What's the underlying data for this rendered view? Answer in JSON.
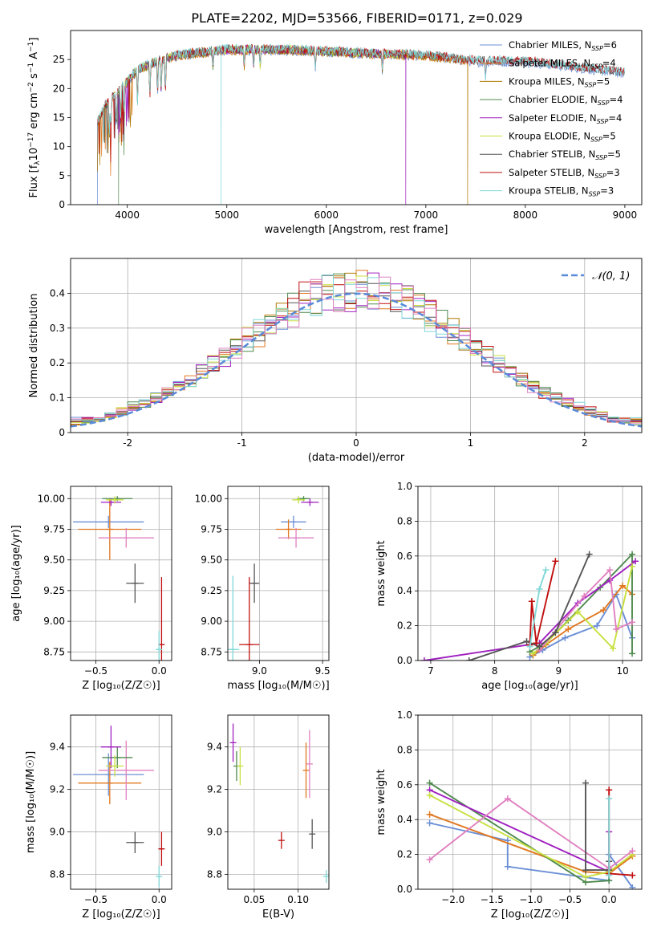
{
  "figure_title": "PLATE=2202, MJD=53566, FIBERID=0171, z=0.029",
  "chart_data": [
    {
      "id": "spectrum",
      "type": "line",
      "xlabel": "wavelength [Angstrom, rest frame]",
      "ylabel_parts": [
        "Flux [f",
        "λ",
        "10",
        "−17",
        " erg cm",
        "−2",
        " s",
        "−1",
        " A",
        "−1",
        "]"
      ],
      "xlim": [
        3430,
        9170
      ],
      "ylim": [
        0,
        30
      ],
      "xticks": [
        4000,
        5000,
        6000,
        7000,
        8000,
        9000
      ],
      "yticks": [
        0,
        5,
        10,
        15,
        20,
        25
      ],
      "legend_position": "upper-right",
      "continuum": {
        "x": [
          3700,
          3780,
          3900,
          4000,
          4100,
          4300,
          4500,
          5000,
          5500,
          6000,
          6500,
          7000,
          7500,
          8000,
          8500,
          9000
        ],
        "y": [
          14,
          17,
          19,
          21,
          23,
          24.5,
          25.5,
          26.5,
          26.5,
          26.2,
          25.8,
          25.5,
          24.5,
          24.5,
          23.5,
          22.5
        ]
      },
      "drops": [
        {
          "series": 0,
          "x": 3700,
          "to": 0
        },
        {
          "series": 3,
          "x": 3910,
          "to": 0
        },
        {
          "series": 8,
          "x": 4940,
          "to": 0
        },
        {
          "series": 4,
          "x": 6800,
          "to": 0
        },
        {
          "series": 2,
          "x": 7420,
          "to": 0
        }
      ],
      "series": [
        {
          "name": "Chabrier MILES",
          "nssp": "6",
          "color": "#6b8fd6",
          "range": [
            3700,
            9000
          ]
        },
        {
          "name": "Salpeter MILES",
          "nssp": "4",
          "color": "#e07820",
          "range": [
            3700,
            7420
          ]
        },
        {
          "name": "Kroupa MILES",
          "nssp": "5",
          "color": "#b07800",
          "range": [
            3700,
            7420
          ]
        },
        {
          "name": "Chabrier ELODIE",
          "nssp": "4",
          "color": "#4f8a4f",
          "range": [
            3900,
            6800
          ]
        },
        {
          "name": "Salpeter ELODIE",
          "nssp": "4",
          "color": "#a020c0",
          "range": [
            3900,
            6800
          ]
        },
        {
          "name": "Kroupa ELODIE",
          "nssp": "5",
          "color": "#c8e040",
          "range": [
            3900,
            6800
          ]
        },
        {
          "name": "Chabrier STELIB",
          "nssp": "5",
          "color": "#555555",
          "range": [
            3700,
            9000
          ]
        },
        {
          "name": "Salpeter STELIB",
          "nssp": "3",
          "color": "#c01010",
          "range": [
            3700,
            9000
          ]
        },
        {
          "name": "Kroupa STELIB",
          "nssp": "3",
          "color": "#80d8d8",
          "range": [
            3700,
            9000
          ]
        }
      ]
    },
    {
      "id": "residuals",
      "type": "histogram",
      "xlabel": "(data-model)/error",
      "ylabel": "Normed distribution",
      "xlim": [
        -2.5,
        2.5
      ],
      "ylim": [
        0,
        0.5
      ],
      "xticks": [
        -2,
        -1,
        0,
        1,
        2
      ],
      "yticks": [
        0.0,
        0.1,
        0.2,
        0.3,
        0.4
      ],
      "bin_width": 0.1,
      "colors": [
        "#6b8fd6",
        "#e07820",
        "#b07800",
        "#4f8a4f",
        "#a020c0",
        "#c8e040",
        "#555555",
        "#c01010",
        "#80d8d8",
        "#e080c0"
      ],
      "reference_curve": {
        "label": "𝒩(0, 1)",
        "color": "#5a8ad8",
        "style": "dashed",
        "mean": 0,
        "sigma": 1
      }
    },
    {
      "id": "age-vs-Z",
      "type": "errorbar",
      "xlabel": "Z [log₁₀(Z/Z☉)]",
      "ylabel": "age  [log₁₀(age/yr)]",
      "xlim": [
        -0.7,
        0.1
      ],
      "ylim": [
        8.68,
        10.1
      ],
      "xticks": [
        -0.5,
        0.0
      ],
      "xticklabels": [
        "−0.5",
        "0.0"
      ],
      "yticks": [
        8.75,
        9.0,
        9.25,
        9.5,
        9.75,
        10.0
      ],
      "yticklabels": [
        "8.75",
        "9.00",
        "9.25",
        "9.50",
        "9.75",
        "10.00"
      ],
      "points": [
        {
          "x": -0.4,
          "xerr": 0.28,
          "y": 9.81,
          "yerr": 0.05,
          "color": "#6b8fd6"
        },
        {
          "x": -0.39,
          "xerr": 0.25,
          "y": 9.75,
          "yerr": 0.25,
          "color": "#e07820"
        },
        {
          "x": -0.26,
          "xerr": 0.22,
          "y": 9.68,
          "yerr": 0.08,
          "color": "#e080c0"
        },
        {
          "x": -0.33,
          "xerr": 0.12,
          "y": 10.0,
          "yerr": 0.02,
          "color": "#4f8a4f"
        },
        {
          "x": -0.38,
          "xerr": 0.08,
          "y": 9.97,
          "yerr": 0.03,
          "color": "#a020c0"
        },
        {
          "x": -0.35,
          "xerr": 0.07,
          "y": 9.99,
          "yerr": 0.03,
          "color": "#c8e040"
        },
        {
          "x": -0.19,
          "xerr": 0.07,
          "y": 9.31,
          "yerr": 0.16,
          "color": "#555555"
        },
        {
          "x": 0.02,
          "xerr": 0.02,
          "y": 8.81,
          "yerr": 0.55,
          "color": "#c01010"
        },
        {
          "x": 0.0,
          "xerr": 0.02,
          "y": 8.77,
          "yerr": 0.15,
          "color": "#80d8d8"
        }
      ]
    },
    {
      "id": "age-vs-mass",
      "type": "errorbar",
      "xlabel": "mass [log₁₀(M/M☉)]",
      "ylabel": "",
      "xlim": [
        8.75,
        9.55
      ],
      "ylim": [
        8.68,
        10.1
      ],
      "xticks": [
        9.0,
        9.5
      ],
      "xticklabels": [
        "9.0",
        "9.5"
      ],
      "yticks": [
        8.75,
        9.0,
        9.25,
        9.5,
        9.75,
        10.0
      ],
      "yticklabels": [
        "8.75",
        "9.00",
        "9.25",
        "9.50",
        "9.75",
        "10.00"
      ],
      "points": [
        {
          "x": 9.27,
          "xerr": 0.1,
          "y": 9.81,
          "yerr": 0.05,
          "color": "#6b8fd6"
        },
        {
          "x": 9.23,
          "xerr": 0.1,
          "y": 9.75,
          "yerr": 0.08,
          "color": "#e07820"
        },
        {
          "x": 9.29,
          "xerr": 0.14,
          "y": 9.68,
          "yerr": 0.08,
          "color": "#e080c0"
        },
        {
          "x": 9.35,
          "xerr": 0.05,
          "y": 10.0,
          "yerr": 0.02,
          "color": "#4f8a4f"
        },
        {
          "x": 9.4,
          "xerr": 0.07,
          "y": 9.97,
          "yerr": 0.03,
          "color": "#a020c0"
        },
        {
          "x": 9.31,
          "xerr": 0.05,
          "y": 9.99,
          "yerr": 0.03,
          "color": "#c8e040"
        },
        {
          "x": 8.96,
          "xerr": 0.04,
          "y": 9.31,
          "yerr": 0.16,
          "color": "#555555"
        },
        {
          "x": 8.92,
          "xerr": 0.08,
          "y": 8.81,
          "yerr": 0.55,
          "color": "#c01010"
        },
        {
          "x": 8.79,
          "xerr": 0.05,
          "y": 8.77,
          "yerr": 0.6,
          "color": "#80d8d8"
        }
      ]
    },
    {
      "id": "weight-vs-age",
      "type": "line",
      "xlabel": "age  [log₁₀(age/yr)]",
      "ylabel": "mass weight",
      "xlim": [
        6.8,
        10.3
      ],
      "ylim": [
        0,
        1.0
      ],
      "xticks": [
        7,
        8,
        9,
        10
      ],
      "xticklabels": [
        "7",
        "8",
        "9",
        "10"
      ],
      "yticks": [
        0.0,
        0.2,
        0.4,
        0.6,
        0.8,
        1.0
      ],
      "yticklabels": [
        "0.0",
        "0.2",
        "0.4",
        "0.6",
        "0.8",
        "1.0"
      ],
      "series": [
        {
          "color": "#6b8fd6",
          "x": [
            8.55,
            8.75,
            9.1,
            9.6,
            9.9,
            10.15
          ],
          "y": [
            0.02,
            0.06,
            0.13,
            0.2,
            0.38,
            0.13
          ]
        },
        {
          "color": "#e07820",
          "x": [
            8.6,
            8.8,
            9.15,
            9.7,
            10.0,
            10.15
          ],
          "y": [
            0.03,
            0.09,
            0.18,
            0.29,
            0.43,
            0.38
          ]
        },
        {
          "color": "#4f8a4f",
          "x": [
            8.55,
            8.8,
            9.15,
            9.65,
            10.15,
            10.15
          ],
          "y": [
            0.05,
            0.1,
            0.23,
            0.42,
            0.61,
            0.04
          ]
        },
        {
          "color": "#a020c0",
          "x": [
            6.9,
            8.7,
            9.3,
            9.8,
            10.2
          ],
          "y": [
            0.0,
            0.1,
            0.33,
            0.46,
            0.57
          ]
        },
        {
          "color": "#c8e040",
          "x": [
            8.6,
            8.8,
            9.3,
            9.85,
            10.15
          ],
          "y": [
            0.04,
            0.1,
            0.28,
            0.07,
            0.54
          ]
        },
        {
          "color": "#e080c0",
          "x": [
            8.7,
            9.4,
            9.8,
            9.9,
            10.15
          ],
          "y": [
            0.06,
            0.37,
            0.52,
            0.18,
            0.22
          ]
        },
        {
          "color": "#555555",
          "x": [
            7.6,
            8.5,
            8.7,
            8.95,
            9.48
          ],
          "y": [
            0.0,
            0.11,
            0.08,
            0.16,
            0.61
          ]
        },
        {
          "color": "#c01010",
          "x": [
            8.55,
            8.58,
            8.65,
            8.95
          ],
          "y": [
            0.09,
            0.34,
            0.1,
            0.57
          ]
        },
        {
          "color": "#80d8d8",
          "x": [
            8.55,
            8.7,
            8.8
          ],
          "y": [
            0.08,
            0.41,
            0.52
          ]
        }
      ]
    },
    {
      "id": "mass-vs-Z",
      "type": "errorbar",
      "xlabel": "Z [log₁₀(Z/Z☉)]",
      "ylabel": "mass [log₁₀(M/M☉)]",
      "xlim": [
        -0.7,
        0.1
      ],
      "ylim": [
        8.73,
        9.55
      ],
      "xticks": [
        -0.5,
        0.0
      ],
      "xticklabels": [
        "−0.5",
        "0.0"
      ],
      "yticks": [
        8.8,
        9.0,
        9.2,
        9.4
      ],
      "yticklabels": [
        "8.8",
        "9.0",
        "9.2",
        "9.4"
      ],
      "points": [
        {
          "x": -0.4,
          "xerr": 0.28,
          "y": 9.27,
          "yerr": 0.1,
          "color": "#6b8fd6"
        },
        {
          "x": -0.39,
          "xerr": 0.25,
          "y": 9.23,
          "yerr": 0.1,
          "color": "#e07820"
        },
        {
          "x": -0.26,
          "xerr": 0.22,
          "y": 9.29,
          "yerr": 0.14,
          "color": "#e080c0"
        },
        {
          "x": -0.33,
          "xerr": 0.12,
          "y": 9.35,
          "yerr": 0.05,
          "color": "#4f8a4f"
        },
        {
          "x": -0.38,
          "xerr": 0.08,
          "y": 9.4,
          "yerr": 0.1,
          "color": "#a020c0"
        },
        {
          "x": -0.35,
          "xerr": 0.07,
          "y": 9.31,
          "yerr": 0.05,
          "color": "#c8e040"
        },
        {
          "x": -0.19,
          "xerr": 0.07,
          "y": 8.95,
          "yerr": 0.05,
          "color": "#555555"
        },
        {
          "x": 0.02,
          "xerr": 0.02,
          "y": 8.92,
          "yerr": 0.08,
          "color": "#c01010"
        },
        {
          "x": 0.0,
          "xerr": 0.02,
          "y": 8.79,
          "yerr": 0.05,
          "color": "#80d8d8"
        }
      ]
    },
    {
      "id": "mass-vs-EBV",
      "type": "errorbar",
      "xlabel": "E(B-V)",
      "ylabel": "",
      "xlim": [
        0.02,
        0.135
      ],
      "ylim": [
        8.73,
        9.55
      ],
      "xticks": [
        0.05,
        0.1
      ],
      "xticklabels": [
        "0.05",
        "0.10"
      ],
      "yticks": [
        8.8,
        9.0,
        9.2,
        9.4
      ],
      "yticklabels": [
        "8.8",
        "9.0",
        "9.2",
        "9.4"
      ],
      "points": [
        {
          "x": 0.026,
          "xerr": 0,
          "y": 9.42,
          "yerr": 0.09,
          "color": "#a020c0"
        },
        {
          "x": 0.03,
          "xerr": 0,
          "y": 9.31,
          "yerr": 0.07,
          "color": "#4f8a4f"
        },
        {
          "x": 0.034,
          "xerr": 0,
          "y": 9.31,
          "yerr": 0.09,
          "color": "#c8e040"
        },
        {
          "x": 0.081,
          "xerr": 0,
          "y": 8.96,
          "yerr": 0.04,
          "color": "#c01010"
        },
        {
          "x": 0.109,
          "xerr": 0,
          "y": 9.29,
          "yerr": 0.13,
          "color": "#e07820"
        },
        {
          "x": 0.113,
          "xerr": 0,
          "y": 9.32,
          "yerr": 0.16,
          "color": "#e080c0"
        },
        {
          "x": 0.116,
          "xerr": 0,
          "y": 8.99,
          "yerr": 0.07,
          "color": "#555555"
        },
        {
          "x": 0.132,
          "xerr": 0,
          "y": 8.79,
          "yerr": 0.03,
          "color": "#80d8d8"
        }
      ]
    },
    {
      "id": "weight-vs-Z",
      "type": "line",
      "xlabel": "Z [log₁₀(Z/Z☉)]",
      "ylabel": "mass weight",
      "xlim": [
        -2.45,
        0.42
      ],
      "ylim": [
        0,
        1.0
      ],
      "xticks": [
        -2.0,
        -1.5,
        -1.0,
        -0.5,
        0.0
      ],
      "xticklabels": [
        "−2.0",
        "−1.5",
        "−1.0",
        "−0.5",
        "0.0"
      ],
      "yticks": [
        0.0,
        0.2,
        0.4,
        0.6,
        0.8,
        1.0
      ],
      "yticklabels": [
        "0.0",
        "0.2",
        "0.4",
        "0.6",
        "0.8",
        "1.0"
      ],
      "series": [
        {
          "color": "#6b8fd6",
          "x": [
            -2.3,
            -1.3,
            -1.3,
            0.0,
            0.0,
            0.3
          ],
          "y": [
            0.38,
            0.28,
            0.13,
            0.05,
            0.2,
            0.01
          ]
        },
        {
          "color": "#e07820",
          "x": [
            -2.3,
            -0.3,
            0.0,
            0.3
          ],
          "y": [
            0.43,
            0.1,
            0.09,
            0.19
          ]
        },
        {
          "color": "#4f8a4f",
          "x": [
            -2.3,
            -0.3,
            0.0,
            0.0
          ],
          "y": [
            0.61,
            0.04,
            0.05,
            0.11
          ]
        },
        {
          "color": "#a020c0",
          "x": [
            -2.3,
            0.0,
            0.0
          ],
          "y": [
            0.57,
            0.1,
            0.33
          ]
        },
        {
          "color": "#c8e040",
          "x": [
            -2.3,
            -0.3,
            0.0,
            0.3
          ],
          "y": [
            0.54,
            0.07,
            0.1,
            0.2
          ]
        },
        {
          "color": "#e080c0",
          "x": [
            -2.3,
            -1.3,
            0.0,
            0.3
          ],
          "y": [
            0.17,
            0.52,
            0.12,
            0.22
          ]
        },
        {
          "color": "#555555",
          "x": [
            -0.3,
            -0.3,
            0.0,
            0.0
          ],
          "y": [
            0.61,
            0.11,
            0.11,
            0.16
          ]
        },
        {
          "color": "#c01010",
          "x": [
            0.0,
            0.0,
            0.3
          ],
          "y": [
            0.57,
            0.09,
            0.08
          ]
        },
        {
          "color": "#80d8d8",
          "x": [
            0.0,
            0.0
          ],
          "y": [
            0.52,
            0.08
          ]
        }
      ]
    }
  ]
}
